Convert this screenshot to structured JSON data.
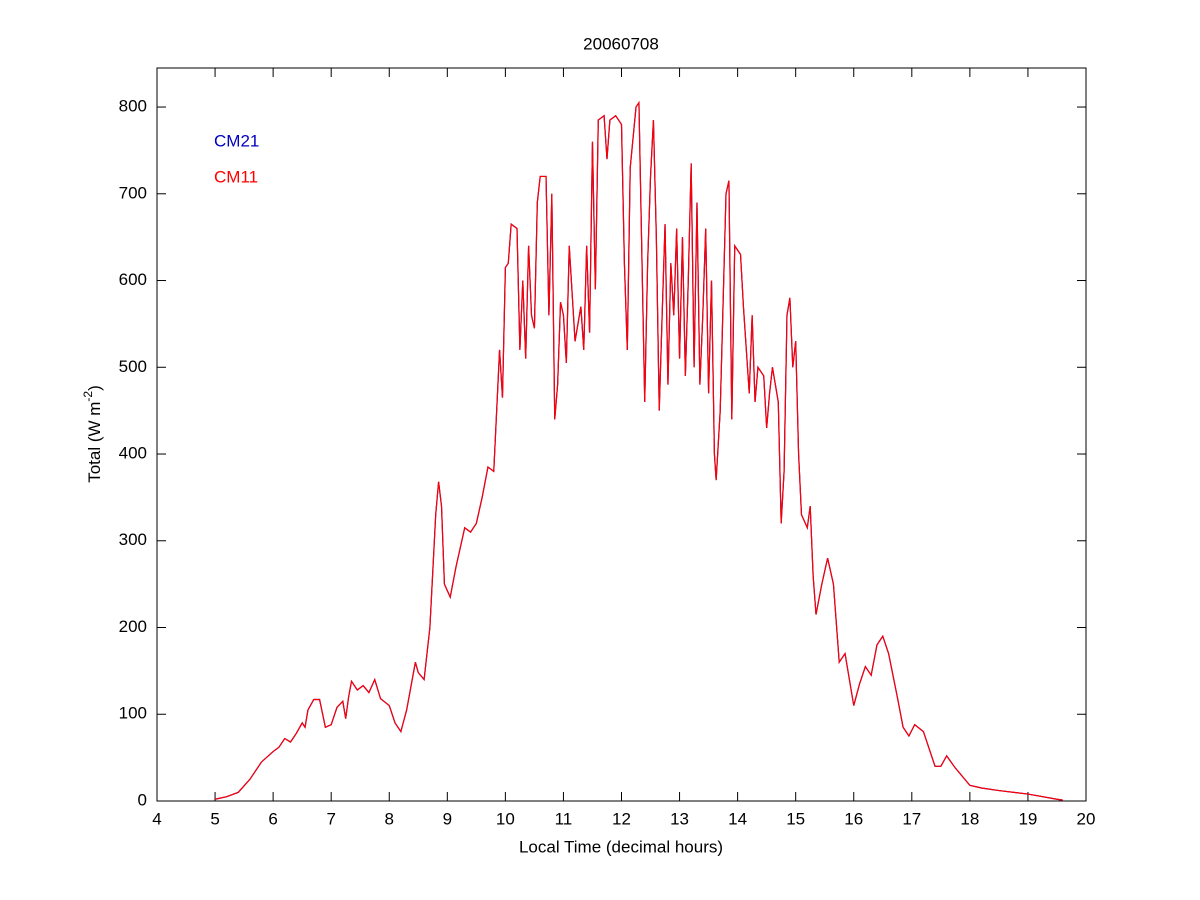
{
  "chart_data": {
    "type": "line",
    "title": "20060708",
    "x_label": "Local Time (decimal hours)",
    "y_label": {
      "text": "Total (W m",
      "superscript": "-2",
      "suffix": ")"
    },
    "xlim": [
      4,
      20
    ],
    "xticks": [
      4,
      5,
      6,
      7,
      8,
      9,
      10,
      11,
      12,
      13,
      14,
      15,
      16,
      17,
      18,
      19,
      20
    ],
    "ylim": [
      0,
      845
    ],
    "yticks": [
      0,
      100,
      200,
      300,
      400,
      500,
      600,
      700,
      800
    ],
    "grid": false,
    "legend": "upper left",
    "x": [
      5.0,
      5.2,
      5.4,
      5.6,
      5.8,
      6.0,
      6.1,
      6.2,
      6.3,
      6.4,
      6.5,
      6.55,
      6.6,
      6.7,
      6.8,
      6.9,
      7.0,
      7.1,
      7.2,
      7.25,
      7.3,
      7.35,
      7.45,
      7.55,
      7.65,
      7.75,
      7.85,
      8.0,
      8.1,
      8.2,
      8.3,
      8.45,
      8.5,
      8.6,
      8.7,
      8.8,
      8.85,
      8.9,
      8.95,
      9.05,
      9.15,
      9.3,
      9.4,
      9.5,
      9.6,
      9.7,
      9.8,
      9.85,
      9.9,
      9.95,
      10.0,
      10.05,
      10.1,
      10.2,
      10.25,
      10.3,
      10.35,
      10.4,
      10.45,
      10.5,
      10.55,
      10.6,
      10.7,
      10.75,
      10.8,
      10.85,
      10.9,
      10.95,
      11.0,
      11.05,
      11.1,
      11.2,
      11.3,
      11.35,
      11.4,
      11.45,
      11.5,
      11.55,
      11.6,
      11.7,
      11.75,
      11.8,
      11.9,
      12.0,
      12.05,
      12.1,
      12.15,
      12.25,
      12.3,
      12.4,
      12.45,
      12.5,
      12.55,
      12.6,
      12.65,
      12.7,
      12.75,
      12.8,
      12.85,
      12.9,
      12.95,
      13.0,
      13.05,
      13.1,
      13.15,
      13.2,
      13.25,
      13.3,
      13.35,
      13.4,
      13.45,
      13.5,
      13.55,
      13.6,
      13.63,
      13.7,
      13.8,
      13.85,
      13.9,
      13.95,
      14.05,
      14.1,
      14.2,
      14.25,
      14.3,
      14.35,
      14.45,
      14.5,
      14.55,
      14.6,
      14.7,
      14.75,
      14.8,
      14.85,
      14.9,
      14.95,
      15.0,
      15.05,
      15.1,
      15.2,
      15.25,
      15.3,
      15.35,
      15.45,
      15.55,
      15.65,
      15.75,
      15.85,
      16.0,
      16.1,
      16.2,
      16.3,
      16.4,
      16.5,
      16.6,
      16.75,
      16.85,
      16.95,
      17.05,
      17.2,
      17.4,
      17.5,
      17.6,
      17.75,
      18.0,
      18.2,
      18.5,
      19.0,
      19.5,
      19.6
    ],
    "series": [
      {
        "name": "CM21",
        "color": "#0000c0",
        "values": [
          2,
          5,
          10,
          25,
          45,
          57,
          62,
          72,
          68,
          78,
          90,
          85,
          105,
          117,
          117,
          85,
          88,
          108,
          115,
          95,
          120,
          138,
          128,
          133,
          125,
          140,
          118,
          110,
          90,
          80,
          105,
          160,
          148,
          140,
          200,
          330,
          368,
          340,
          250,
          235,
          270,
          315,
          310,
          320,
          350,
          385,
          380,
          450,
          520,
          465,
          615,
          620,
          665,
          660,
          520,
          600,
          510,
          640,
          560,
          545,
          690,
          720,
          720,
          560,
          700,
          440,
          480,
          575,
          560,
          505,
          640,
          530,
          570,
          520,
          640,
          540,
          760,
          590,
          785,
          790,
          740,
          785,
          790,
          780,
          620,
          520,
          730,
          800,
          805,
          460,
          620,
          720,
          785,
          650,
          450,
          560,
          665,
          480,
          620,
          560,
          660,
          510,
          650,
          490,
          600,
          735,
          500,
          690,
          480,
          560,
          660,
          470,
          600,
          400,
          370,
          450,
          700,
          715,
          440,
          640,
          630,
          570,
          470,
          560,
          460,
          500,
          490,
          430,
          470,
          500,
          460,
          320,
          380,
          560,
          580,
          500,
          530,
          400,
          330,
          315,
          340,
          260,
          215,
          250,
          280,
          250,
          160,
          170,
          110,
          135,
          155,
          145,
          180,
          190,
          170,
          120,
          85,
          75,
          88,
          80,
          40,
          40,
          52,
          38,
          18,
          15,
          12,
          8,
          2,
          1
        ]
      },
      {
        "name": "CM11",
        "color": "#ff0000",
        "values": [
          2,
          5,
          10,
          25,
          45,
          57,
          62,
          72,
          68,
          78,
          90,
          85,
          105,
          117,
          117,
          85,
          88,
          108,
          115,
          95,
          120,
          138,
          128,
          133,
          125,
          140,
          118,
          110,
          90,
          80,
          105,
          160,
          148,
          140,
          200,
          330,
          368,
          340,
          250,
          235,
          270,
          315,
          310,
          320,
          350,
          385,
          380,
          450,
          520,
          465,
          615,
          620,
          665,
          660,
          520,
          600,
          510,
          640,
          560,
          545,
          690,
          720,
          720,
          560,
          700,
          440,
          480,
          575,
          560,
          505,
          640,
          530,
          570,
          520,
          640,
          540,
          760,
          590,
          785,
          790,
          740,
          785,
          790,
          780,
          620,
          520,
          730,
          800,
          805,
          460,
          620,
          720,
          785,
          650,
          450,
          560,
          665,
          480,
          620,
          560,
          660,
          510,
          650,
          490,
          600,
          735,
          500,
          690,
          480,
          560,
          660,
          470,
          600,
          400,
          370,
          450,
          700,
          715,
          440,
          640,
          630,
          570,
          470,
          560,
          460,
          500,
          490,
          430,
          470,
          500,
          460,
          320,
          380,
          560,
          580,
          500,
          530,
          400,
          330,
          315,
          340,
          260,
          215,
          250,
          280,
          250,
          160,
          170,
          110,
          135,
          155,
          145,
          180,
          190,
          170,
          120,
          85,
          75,
          88,
          80,
          40,
          40,
          52,
          38,
          18,
          15,
          12,
          8,
          2,
          1
        ]
      }
    ]
  }
}
